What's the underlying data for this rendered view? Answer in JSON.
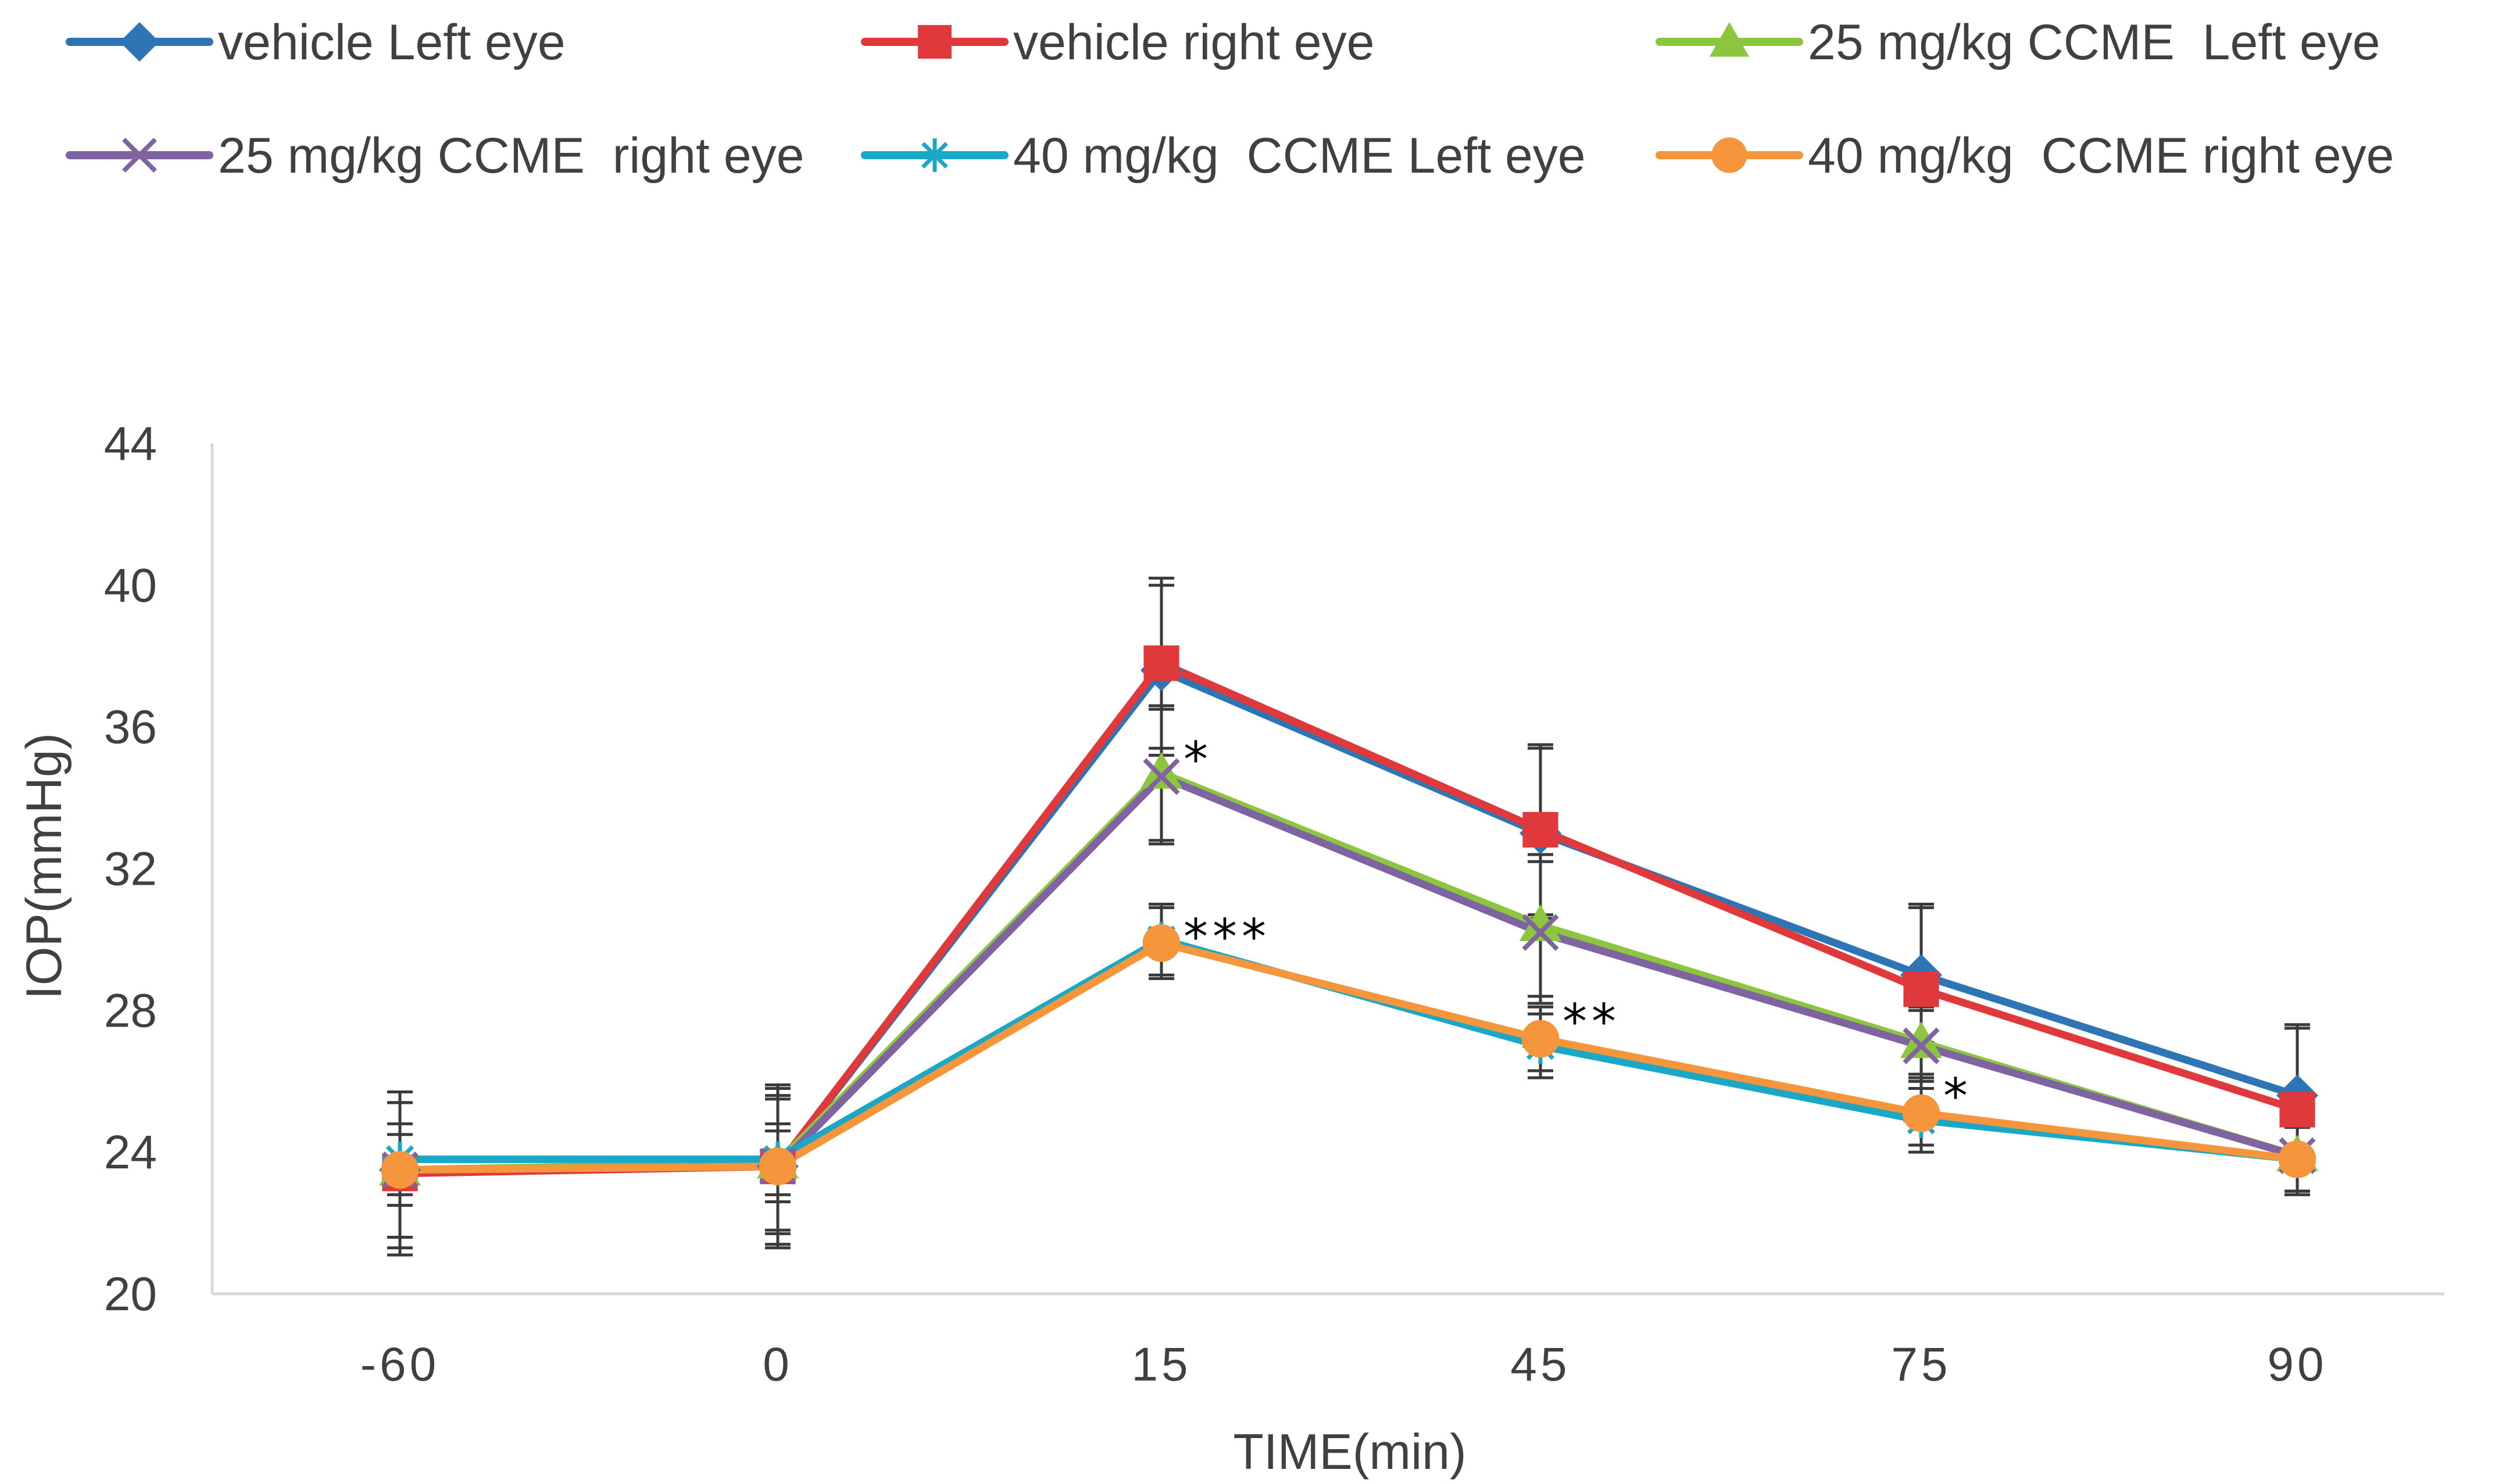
{
  "chart_data": {
    "type": "line",
    "title": "",
    "xlabel": "TIME(min)",
    "ylabel": "IOP(mmHg)",
    "categories": [
      "-60",
      "0",
      "15",
      "45",
      "75",
      "90"
    ],
    "ylim": [
      20,
      44
    ],
    "yticks": [
      20,
      24,
      28,
      32,
      36,
      40,
      44
    ],
    "grid": false,
    "legend_position": "top",
    "series": [
      {
        "name": "vehicle Left eye",
        "marker": "diamond",
        "color": "#2E75B6",
        "values": [
          23.5,
          23.6,
          37.6,
          33.0,
          29.0,
          25.6
        ],
        "err": [
          2.2,
          2.2,
          2.4,
          2.4,
          1.9,
          1.9
        ]
      },
      {
        "name": "vehicle right eye",
        "marker": "square",
        "color": "#E0393B",
        "values": [
          23.4,
          23.6,
          37.8,
          33.1,
          28.6,
          25.2
        ],
        "err": [
          2.3,
          2.3,
          2.4,
          2.4,
          2.4,
          2.4
        ]
      },
      {
        "name": "25 mg/kg CCME  Left eye",
        "marker": "triangle",
        "color": "#8CC63F",
        "values": [
          23.5,
          23.7,
          34.7,
          30.4,
          27.1,
          23.9
        ],
        "err": [
          1.9,
          1.9,
          1.9,
          2.0,
          1.0,
          1.0
        ]
      },
      {
        "name": "25 mg/kg CCME  right eye",
        "marker": "x",
        "color": "#8064A2",
        "values": [
          23.5,
          23.6,
          34.6,
          30.2,
          27.0,
          23.9
        ],
        "err": [
          1.9,
          1.9,
          1.9,
          2.0,
          1.0,
          1.0
        ]
      },
      {
        "name": "40 mg/kg  CCME Left eye",
        "marker": "star",
        "color": "#1BA8C6",
        "values": [
          23.8,
          23.8,
          30.0,
          27.0,
          24.9,
          23.8
        ],
        "err": [
          1.0,
          1.0,
          1.0,
          0.9,
          0.9,
          0.9
        ]
      },
      {
        "name": "40 mg/kg  CCME right eye",
        "marker": "circle",
        "color": "#F5953C",
        "values": [
          23.5,
          23.6,
          29.9,
          27.2,
          25.1,
          23.8
        ],
        "err": [
          1.0,
          1.0,
          1.0,
          0.9,
          0.9,
          0.9
        ]
      }
    ],
    "annotations": [
      {
        "text": "*",
        "category": "15",
        "y": 35.1
      },
      {
        "text": "***",
        "category": "15",
        "y": 30.1
      },
      {
        "text": "**",
        "category": "45",
        "y": 27.7
      },
      {
        "text": "*",
        "category": "75",
        "y": 25.6
      }
    ]
  }
}
